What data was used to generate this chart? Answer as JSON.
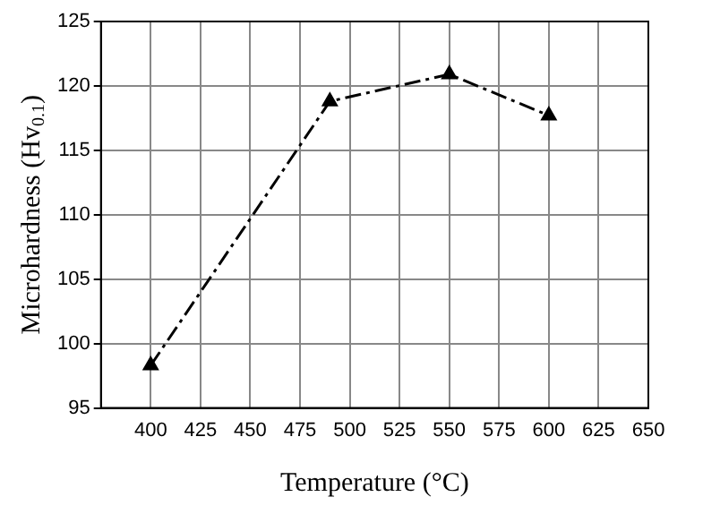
{
  "chart_data": {
    "type": "line",
    "xlabel": "Temperature (°C)",
    "ylabel": "Microhardness (Hv$_{0.1}$)",
    "x": [
      400,
      490,
      550,
      600
    ],
    "series": [
      {
        "color": "#000000",
        "values": [
          98.3,
          118.8,
          120.9,
          117.7
        ]
      }
    ],
    "xlim": [
      375,
      650
    ],
    "xticks": [
      400,
      425,
      450,
      475,
      500,
      525,
      550,
      575,
      600,
      625,
      650
    ],
    "ylim": [
      95,
      125
    ],
    "yticks": [
      95,
      100,
      105,
      110,
      115,
      120,
      125
    ],
    "grid": true,
    "legend": false,
    "marker": "triangle",
    "line_style": "dashed"
  }
}
